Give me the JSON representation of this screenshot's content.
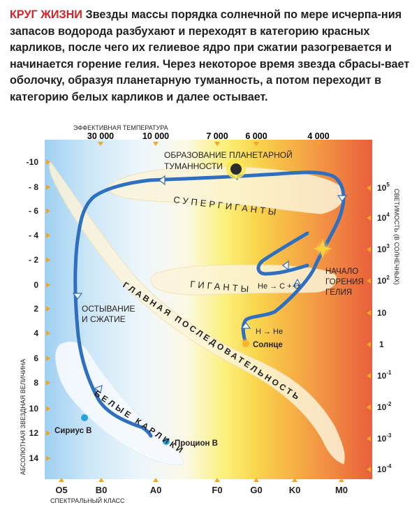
{
  "intro": {
    "heading": "КРУГ ЖИЗНИ",
    "text": "Звезды массы порядка солнечной по мере исчерпа-ния запасов водорода разбухают и переходят в категорию красных карликов, после чего их гелиевое ядро при сжатии разогревается и начинается горение гелия. Через некоторое время звезда сбрасы-вает оболочку, образуя планетарную туманность, а потом переходит в категорию белых карликов и далее остывает."
  },
  "axes": {
    "top_title": "ЭФФЕКТИВНАЯ ТЕМПЕРАТУРА",
    "top_ticks": [
      "30 000",
      "10 000",
      "7 000",
      "6 000",
      "4 000"
    ],
    "left_title": "АБСОЛЮТНАЯ ЗВЕЗДНАЯ ВЕЛИЧИНА",
    "left_ticks": [
      "-10",
      "- 8",
      "- 6",
      "- 4",
      "- 2",
      "0",
      "2",
      "4",
      "6",
      "8",
      "10",
      "12",
      "14"
    ],
    "right_title": "СВЕТИМОСТЬ (В СОЛНЕЧНЫХ)",
    "right_ticks": [
      {
        "base": "10",
        "exp": "5"
      },
      {
        "base": "10",
        "exp": "4"
      },
      {
        "base": "10",
        "exp": "3"
      },
      {
        "base": "10",
        "exp": "2"
      },
      {
        "base": "10",
        "exp": ""
      },
      {
        "base": "1",
        "exp": ""
      },
      {
        "base": "10",
        "exp": "-1"
      },
      {
        "base": "10",
        "exp": "-2"
      },
      {
        "base": "10",
        "exp": "-3"
      },
      {
        "base": "10",
        "exp": "-4"
      }
    ],
    "bottom_title": "СПЕКТРАЛЬНЫЙ КЛАСС",
    "bottom_ticks": [
      "O5",
      "B0",
      "A0",
      "F0",
      "G0",
      "K0",
      "M0"
    ]
  },
  "labels": {
    "nebula": [
      "ОБРАЗОВАНИЕ ПЛАНЕТАРНОЙ",
      "ТУМАННОСТИ"
    ],
    "supergiants": "СУПЕРГИГАНТЫ",
    "giants": "ГИГАНТЫ",
    "he_to_co": "He → C + O",
    "h_to_he": "H → He",
    "helium_burning": [
      "НАЧАЛО",
      "ГОРЕНИЯ",
      "ГЕЛИЯ"
    ],
    "main_sequence": "ГЛАВНАЯ ПОСЛЕДОВАТЕЛЬНОСТЬ",
    "cooling": [
      "ОСТЫВАНИЕ",
      "И СЖАТИЕ"
    ],
    "white_dwarfs": "БЕЛЫЕ КАРЛИКИ",
    "sun": "Солнце",
    "sirius": "Сириус В",
    "procyon": "Процион В"
  },
  "colors": {
    "path": "#2f6fc0",
    "star_dot": "#2aa3dd",
    "sun": "#f7b626",
    "heading": "#d2232a",
    "band_fill": "#fbf3d9"
  }
}
